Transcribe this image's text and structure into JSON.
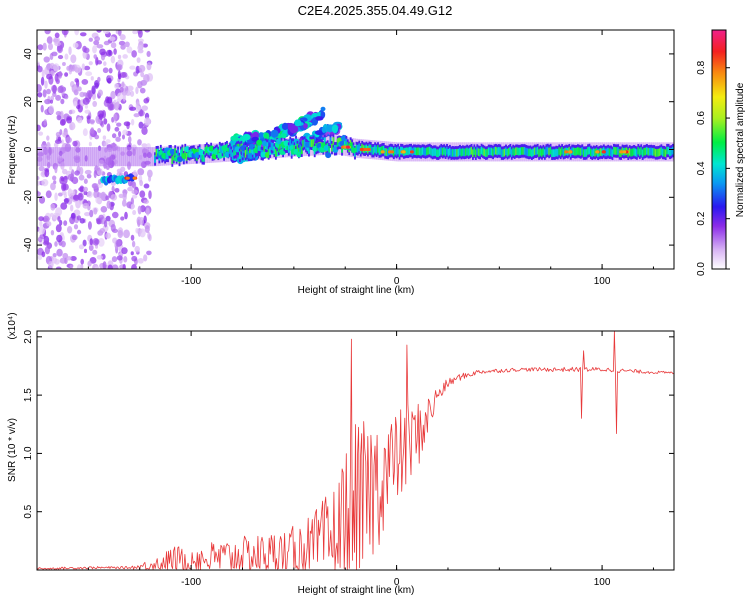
{
  "title": "C2E4.2025.355.04.49.G12",
  "chart_data": [
    {
      "type": "heatmap",
      "title": "C2E4.2025.355.04.49.G12",
      "xlabel": "Height of straight line (km)",
      "ylabel": "Frequency (Hz)",
      "xlim": [
        -175,
        135
      ],
      "ylim": [
        -50,
        50
      ],
      "xticks": [
        -100,
        0,
        100
      ],
      "yticks": [
        -40,
        -20,
        0,
        20,
        40
      ],
      "xtick_labels": [
        "-100",
        "0",
        "100"
      ],
      "ytick_labels": [
        "-40",
        "-20",
        "0",
        "20",
        "40"
      ],
      "colorbar": {
        "label": "Normalized spectral amplitude",
        "range": [
          0,
          0.95
        ],
        "ticks": [
          0,
          0.2,
          0.4,
          0.6,
          0.8
        ],
        "tick_labels": [
          "0.0",
          "0.2",
          "0.4",
          "0.6",
          "0.8"
        ]
      },
      "features": [
        {
          "name": "main-signal-band",
          "x": [
            -118,
            -80,
            -50,
            -30,
            -20,
            0,
            50,
            100,
            135
          ],
          "y": [
            -3,
            -1,
            1,
            2,
            0.5,
            -1,
            -1,
            -1,
            -1
          ],
          "width_hz": 3,
          "amplitude": 0.45
        },
        {
          "name": "rising-trace-upper",
          "x": [
            -80,
            -60,
            -50,
            -40,
            -35
          ],
          "y": [
            3,
            6,
            9,
            13,
            17
          ],
          "amplitude": 0.35
        },
        {
          "name": "rising-trace-lower",
          "x": [
            -80,
            -60,
            -45,
            -35,
            -28
          ],
          "y": [
            -3,
            0,
            3,
            7,
            10
          ],
          "amplitude": 0.3
        },
        {
          "name": "low-segment",
          "x": [
            -143,
            -128
          ],
          "y": [
            -13,
            -12
          ],
          "amplitude": 0.3
        },
        {
          "name": "left-noise-cluster",
          "x": [
            -175,
            -120
          ],
          "y": [
            -50,
            50
          ],
          "amplitude": 0.15
        },
        {
          "name": "hot-spots",
          "x": [
            -130,
            -25,
            -15,
            -5,
            5,
            85,
            100,
            110
          ],
          "y": [
            -12,
            1,
            0,
            -1,
            -1,
            -1,
            -1,
            -1
          ],
          "amplitude": 0.85
        }
      ]
    },
    {
      "type": "line",
      "xlabel": "Height of straight line (km)",
      "ylabel": "SNR (10 * v/v)",
      "y_scale_label": "(x10⁴)",
      "xlim": [
        -175,
        135
      ],
      "ylim": [
        0,
        2.05
      ],
      "xticks": [
        -100,
        0,
        100
      ],
      "yticks": [
        0.5,
        1.0,
        1.5,
        2.0
      ],
      "xtick_labels": [
        "-100",
        "0",
        "100"
      ],
      "ytick_labels": [
        "0.5",
        "1.0",
        "1.5",
        "2.0"
      ],
      "color": "#e8393a",
      "envelope": {
        "x": [
          -175,
          -150,
          -130,
          -120,
          -110,
          -90,
          -70,
          -50,
          -40,
          -30,
          -25,
          -20,
          -15,
          -10,
          -5,
          0,
          5,
          10,
          15,
          20,
          25,
          30,
          40,
          60,
          80,
          100,
          120,
          135
        ],
        "base": [
          0.01,
          0.02,
          0.02,
          0.04,
          0.08,
          0.1,
          0.12,
          0.16,
          0.2,
          0.26,
          0.35,
          0.45,
          0.6,
          0.75,
          0.85,
          0.95,
          1.05,
          1.15,
          1.3,
          1.5,
          1.6,
          1.65,
          1.7,
          1.72,
          1.72,
          1.72,
          1.7,
          1.69
        ],
        "noise": [
          0.01,
          0.01,
          0.01,
          0.05,
          0.12,
          0.15,
          0.18,
          0.22,
          0.3,
          0.5,
          0.7,
          0.8,
          0.7,
          0.6,
          0.5,
          0.4,
          0.4,
          0.3,
          0.2,
          0.08,
          0.04,
          0.03,
          0.02,
          0.015,
          0.02,
          0.02,
          0.015,
          0.01
        ]
      },
      "spikes": [
        {
          "x": -22,
          "y": 1.98
        },
        {
          "x": -18,
          "y": 0.02
        },
        {
          "x": 5,
          "y": 1.93
        },
        {
          "x": 90,
          "y": 1.3
        },
        {
          "x": 91,
          "y": 1.88
        },
        {
          "x": 106,
          "y": 2.05
        },
        {
          "x": 107,
          "y": 1.17
        }
      ]
    }
  ]
}
